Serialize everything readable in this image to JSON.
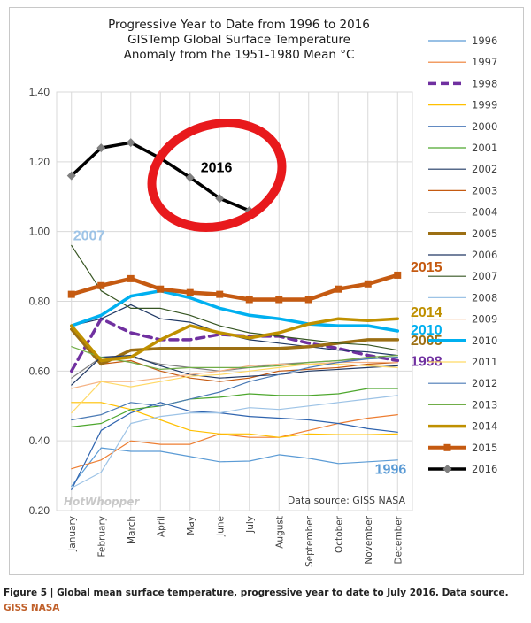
{
  "chart_data": {
    "type": "line",
    "title_lines": [
      "Progressive Year to Date from 1996 to 2016",
      "GISTemp Global Surface Temperature",
      "Anomaly from the 1951-1980 Mean °C"
    ],
    "categories": [
      "January",
      "February",
      "March",
      "April",
      "May",
      "June",
      "July",
      "August",
      "September",
      "October",
      "November",
      "December"
    ],
    "ylim": [
      0.2,
      1.4
    ],
    "yticks": [
      "0.20",
      "0.40",
      "0.60",
      "0.80",
      "1.00",
      "1.20",
      "1.40"
    ],
    "grid": true,
    "legend_position": "right",
    "source_note": "Data source: GISS NASA",
    "watermark": "HotWhopper",
    "series": [
      {
        "name": "1996",
        "color": "#5b9bd5",
        "width": 1.2,
        "values": [
          0.27,
          0.38,
          0.37,
          0.37,
          0.355,
          0.34,
          0.342,
          0.36,
          0.35,
          0.335,
          0.34,
          0.345
        ]
      },
      {
        "name": "1997",
        "color": "#ed7d31",
        "width": 1.2,
        "values": [
          0.32,
          0.345,
          0.4,
          0.39,
          0.39,
          0.42,
          0.41,
          0.41,
          0.43,
          0.45,
          0.465,
          0.475
        ]
      },
      {
        "name": "1998",
        "color": "#7030a0",
        "width": 3.5,
        "dash": "9,6",
        "values": [
          0.6,
          0.75,
          0.71,
          0.69,
          0.69,
          0.705,
          0.7,
          0.7,
          0.68,
          0.665,
          0.645,
          0.63
        ]
      },
      {
        "name": "1999",
        "color": "#ffc000",
        "width": 1.2,
        "values": [
          0.51,
          0.51,
          0.49,
          0.46,
          0.43,
          0.42,
          0.42,
          0.41,
          0.42,
          0.418,
          0.418,
          0.42
        ]
      },
      {
        "name": "2000",
        "color": "#2e63ae",
        "width": 1.2,
        "values": [
          0.26,
          0.43,
          0.48,
          0.51,
          0.485,
          0.48,
          0.47,
          0.465,
          0.46,
          0.45,
          0.435,
          0.425
        ]
      },
      {
        "name": "2001",
        "color": "#4ea72e",
        "width": 1.2,
        "values": [
          0.44,
          0.45,
          0.49,
          0.5,
          0.52,
          0.525,
          0.535,
          0.53,
          0.53,
          0.535,
          0.55,
          0.55
        ]
      },
      {
        "name": "2002",
        "color": "#1f3864",
        "width": 1.2,
        "values": [
          0.73,
          0.75,
          0.79,
          0.75,
          0.74,
          0.71,
          0.69,
          0.68,
          0.67,
          0.66,
          0.655,
          0.645
        ]
      },
      {
        "name": "2003",
        "color": "#c55a11",
        "width": 1.2,
        "values": [
          0.72,
          0.62,
          0.63,
          0.6,
          0.58,
          0.57,
          0.58,
          0.6,
          0.605,
          0.61,
          0.62,
          0.625
        ]
      },
      {
        "name": "2004",
        "color": "#7f7f7f",
        "width": 1.2,
        "values": [
          0.58,
          0.64,
          0.64,
          0.62,
          0.61,
          0.6,
          0.61,
          0.62,
          0.625,
          0.63,
          0.635,
          0.64
        ]
      },
      {
        "name": "2005",
        "color": "#9c6f13",
        "width": 3.5,
        "values": [
          0.72,
          0.62,
          0.66,
          0.665,
          0.665,
          0.665,
          0.665,
          0.665,
          0.67,
          0.68,
          0.69,
          0.69
        ]
      },
      {
        "name": "2006",
        "color": "#203864",
        "width": 1.2,
        "values": [
          0.56,
          0.64,
          0.645,
          0.615,
          0.59,
          0.58,
          0.585,
          0.59,
          0.6,
          0.605,
          0.61,
          0.615
        ]
      },
      {
        "name": "2007",
        "color": "#375623",
        "width": 1.2,
        "values": [
          0.96,
          0.83,
          0.78,
          0.78,
          0.76,
          0.73,
          0.71,
          0.7,
          0.69,
          0.68,
          0.675,
          0.66
        ]
      },
      {
        "name": "2008",
        "color": "#9dc3e6",
        "width": 1.2,
        "values": [
          0.265,
          0.31,
          0.45,
          0.47,
          0.48,
          0.48,
          0.495,
          0.49,
          0.5,
          0.51,
          0.52,
          0.53
        ]
      },
      {
        "name": "2009",
        "color": "#f4b183",
        "width": 1.2,
        "values": [
          0.55,
          0.57,
          0.57,
          0.58,
          0.59,
          0.6,
          0.615,
          0.62,
          0.62,
          0.625,
          0.625,
          0.625
        ]
      },
      {
        "name": "2010",
        "color": "#00b0f0",
        "width": 3.5,
        "values": [
          0.73,
          0.76,
          0.815,
          0.83,
          0.81,
          0.78,
          0.76,
          0.75,
          0.735,
          0.73,
          0.73,
          0.715
        ]
      },
      {
        "name": "2011",
        "color": "#ffd966",
        "width": 1.2,
        "values": [
          0.48,
          0.57,
          0.555,
          0.57,
          0.585,
          0.59,
          0.6,
          0.61,
          0.62,
          0.62,
          0.615,
          0.61
        ]
      },
      {
        "name": "2012",
        "color": "#4a7ab5",
        "width": 1.2,
        "values": [
          0.46,
          0.475,
          0.51,
          0.5,
          0.52,
          0.54,
          0.57,
          0.59,
          0.61,
          0.625,
          0.635,
          0.64
        ]
      },
      {
        "name": "2013",
        "color": "#70ad47",
        "width": 1.2,
        "values": [
          0.67,
          0.64,
          0.625,
          0.605,
          0.61,
          0.61,
          0.61,
          0.615,
          0.625,
          0.63,
          0.64,
          0.645
        ]
      },
      {
        "name": "2014",
        "color": "#bf9000",
        "width": 3.5,
        "values": [
          0.73,
          0.63,
          0.64,
          0.69,
          0.73,
          0.71,
          0.695,
          0.71,
          0.735,
          0.75,
          0.745,
          0.75
        ]
      },
      {
        "name": "2015",
        "color": "#c55a11",
        "width": 4.5,
        "marker": "square",
        "values": [
          0.82,
          0.845,
          0.865,
          0.835,
          0.825,
          0.82,
          0.805,
          0.805,
          0.805,
          0.835,
          0.85,
          0.875
        ]
      },
      {
        "name": "2016",
        "color": "#000000",
        "width": 3.5,
        "marker": "diamond",
        "values": [
          1.16,
          1.24,
          1.255,
          1.21,
          1.155,
          1.095,
          1.06,
          null,
          null,
          null,
          null,
          null
        ]
      }
    ],
    "annotations": [
      {
        "text": "2007",
        "color": "#9dc3e6",
        "x": "January",
        "y": 0.975
      },
      {
        "text": "2016",
        "color": "#000000",
        "x": "May",
        "y": 1.17
      },
      {
        "text": "2015",
        "color": "#c55a11",
        "x": "December",
        "y": 0.885
      },
      {
        "text": "2014",
        "color": "#bf9000",
        "x": "December",
        "y": 0.755
      },
      {
        "text": "2010",
        "color": "#00b0f0",
        "x": "December",
        "y": 0.705
      },
      {
        "text": "2005",
        "color": "#9c6f13",
        "x": "December",
        "y": 0.675
      },
      {
        "text": "1998",
        "color": "#7030a0",
        "x": "December",
        "y": 0.615
      },
      {
        "text": "1996",
        "color": "#5b9bd5",
        "x": "December",
        "y": 0.305
      }
    ]
  },
  "caption": {
    "text": "Figure 5 | Global mean surface temperature, progressive year to date to July 2016. Data source. ",
    "link_text": "GISS NASA"
  }
}
